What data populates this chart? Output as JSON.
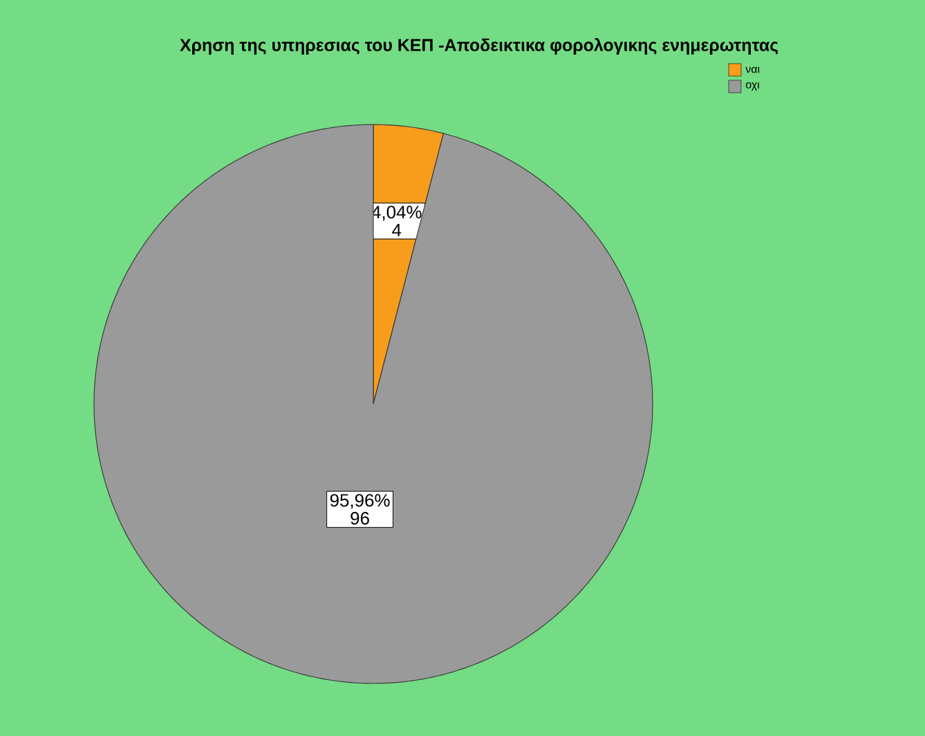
{
  "chart_data": {
    "type": "pie",
    "title": "Χρηση της υπηρεσιας του ΚΕΠ -Αποδεικτικα φορολογικης ενημερωτητας",
    "categories": [
      "ναι",
      "οχι"
    ],
    "values": [
      4.04,
      95.96
    ],
    "value_labels": [
      "4,04%",
      "95,96%"
    ],
    "annotations": [
      "4",
      "96"
    ],
    "colors": [
      "#f89c1c",
      "#9a9a9a"
    ],
    "legend": "top right"
  }
}
